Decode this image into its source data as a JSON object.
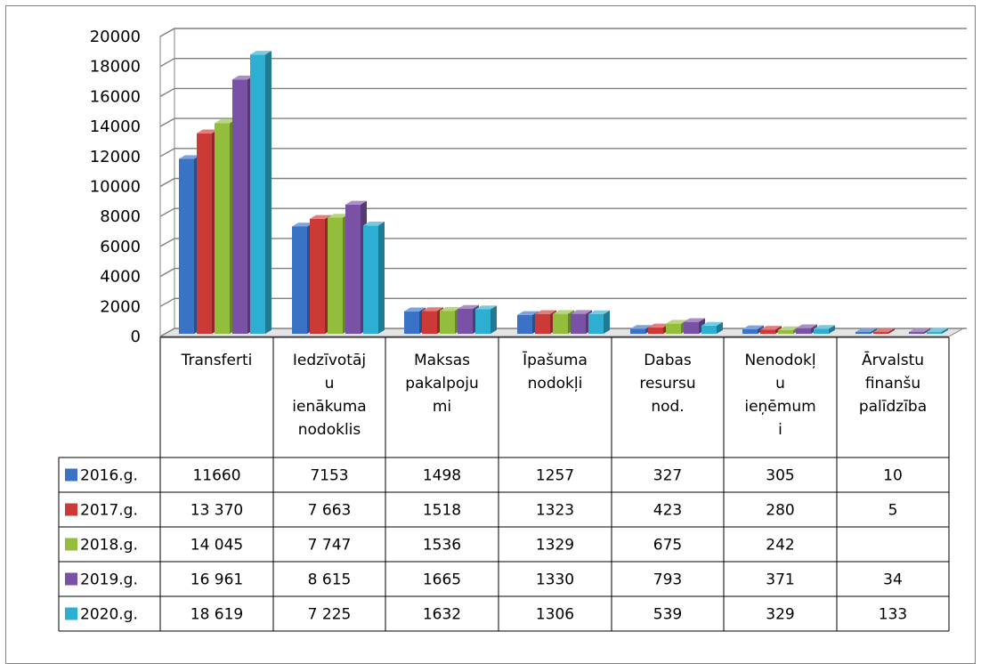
{
  "chart_data": {
    "type": "bar",
    "title": "",
    "xlabel": "",
    "ylabel": "",
    "ylim": [
      0,
      20000
    ],
    "yticks": [
      "0",
      "2000",
      "4000",
      "6000",
      "8000",
      "10000",
      "12000",
      "14000",
      "16000",
      "18000",
      "20000"
    ],
    "categories": [
      [
        "Transferti"
      ],
      [
        "Iedzīvotāj",
        "u",
        "ienākuma",
        "nodoklis"
      ],
      [
        "Maksas",
        "pakalpoju",
        "mi"
      ],
      [
        "Īpašuma",
        "nodokļi"
      ],
      [
        "Dabas",
        "resursu",
        "nod."
      ],
      [
        "Nenodokļ",
        "u",
        "ieņēmum",
        "i"
      ],
      [
        "Ārvalstu",
        "finanšu",
        "palīdzība"
      ]
    ],
    "series": [
      {
        "name": "2016.g.",
        "color": "#3a72c6",
        "values": [
          11660,
          7153,
          1498,
          1257,
          327,
          305,
          10
        ],
        "labels": [
          "11660",
          "7153",
          "1498",
          "1257",
          "327",
          "305",
          "10"
        ]
      },
      {
        "name": "2017.g.",
        "color": "#cc3a37",
        "values": [
          13370,
          7663,
          1518,
          1323,
          423,
          280,
          5
        ],
        "labels": [
          "13 370",
          "7 663",
          "1518",
          "1323",
          "423",
          "280",
          "5"
        ]
      },
      {
        "name": "2018.g.",
        "color": "#93be3c",
        "values": [
          14045,
          7747,
          1536,
          1329,
          675,
          242,
          null
        ],
        "labels": [
          "14 045",
          "7 747",
          "1536",
          "1329",
          "675",
          "242",
          ""
        ]
      },
      {
        "name": "2019.g.",
        "color": "#7a52a5",
        "values": [
          16961,
          8615,
          1665,
          1330,
          793,
          371,
          34
        ],
        "labels": [
          "16 961",
          "8 615",
          "1665",
          "1330",
          "793",
          "371",
          "34"
        ]
      },
      {
        "name": "2020.g.",
        "color": "#2eaed0",
        "values": [
          18619,
          7225,
          1632,
          1306,
          539,
          329,
          133
        ],
        "labels": [
          "18 619",
          "7 225",
          "1632",
          "1306",
          "539",
          "329",
          "133"
        ]
      }
    ],
    "legend": "table-left",
    "grid": true,
    "style": "3d-clustered-column-with-data-table"
  }
}
